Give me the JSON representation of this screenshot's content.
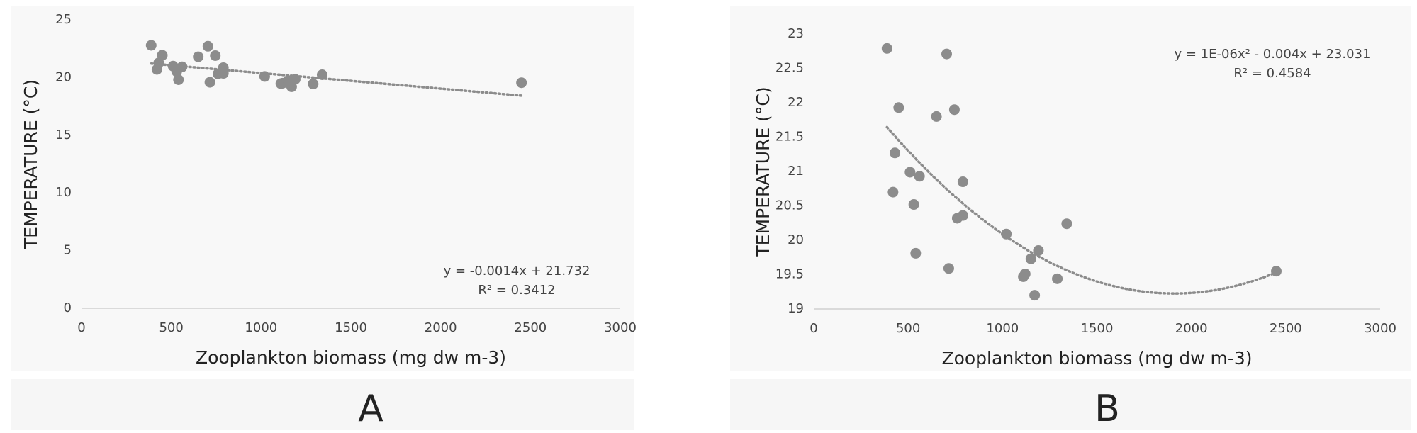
{
  "chart_data": [
    {
      "type": "scatter",
      "panel_label": "A",
      "xlabel": "Zooplankton biomass (mg dw m-3)",
      "ylabel": "TEMPERATURE (°C)",
      "equation": "y = -0.0014x + 21.732",
      "r_squared": "R² = 0.3412",
      "trendline": "linear",
      "color": "#8c8c8c",
      "trendline_color": "#8c8c8c",
      "x": [
        388,
        420,
        430,
        450,
        510,
        530,
        540,
        560,
        650,
        704,
        715,
        745,
        760,
        790,
        790,
        1020,
        1110,
        1120,
        1150,
        1170,
        1190,
        1290,
        1340,
        2450
      ],
      "y": [
        22.79,
        20.7,
        21.27,
        21.93,
        20.99,
        20.52,
        19.81,
        20.93,
        21.8,
        22.71,
        19.59,
        21.9,
        20.32,
        20.36,
        20.85,
        20.09,
        19.47,
        19.51,
        19.73,
        19.2,
        19.85,
        19.44,
        20.24,
        19.55
      ],
      "xlim": [
        0,
        3000
      ],
      "xticks": [
        0,
        500,
        1000,
        1500,
        2000,
        2500,
        3000
      ],
      "ylim": [
        0,
        25
      ],
      "yticks": [
        0,
        5,
        10,
        15,
        20,
        25
      ]
    },
    {
      "type": "scatter",
      "panel_label": "B",
      "xlabel": "Zooplankton biomass (mg dw m-3)",
      "ylabel": "TEMPERATURE (°C)",
      "equation": "y = 1E-06x² - 0.004x + 23.031",
      "r_squared": "R² = 0.4584",
      "trendline": "poly2",
      "color": "#8c8c8c",
      "trendline_color": "#8c8c8c",
      "x": [
        388,
        420,
        430,
        450,
        510,
        530,
        540,
        560,
        650,
        704,
        715,
        745,
        760,
        790,
        790,
        1020,
        1110,
        1120,
        1150,
        1170,
        1190,
        1290,
        1340,
        2450
      ],
      "y": [
        22.79,
        20.7,
        21.27,
        21.93,
        20.99,
        20.52,
        19.81,
        20.93,
        21.8,
        22.71,
        19.59,
        21.9,
        20.32,
        20.36,
        20.85,
        20.09,
        19.47,
        19.51,
        19.73,
        19.2,
        19.85,
        19.44,
        20.24,
        19.55
      ],
      "xlim": [
        0,
        3000
      ],
      "xticks": [
        0,
        500,
        1000,
        1500,
        2000,
        2500,
        3000
      ],
      "ylim": [
        19,
        23
      ],
      "yticks": [
        19,
        19.5,
        20,
        20.5,
        21,
        21.5,
        22,
        22.5,
        23
      ]
    }
  ]
}
